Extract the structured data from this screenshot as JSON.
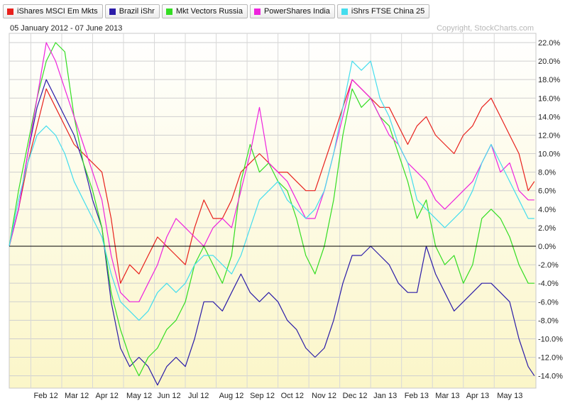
{
  "legend": [
    {
      "label": "iShares MSCI Em Mkts",
      "color": "#e8201c"
    },
    {
      "label": "Brazil iShr",
      "color": "#2b1ca8"
    },
    {
      "label": "Mkt Vectors Russia",
      "color": "#33dd22"
    },
    {
      "label": "PowerShares India",
      "color": "#ee22dd"
    },
    {
      "label": "iShrs FTSE China 25",
      "color": "#44ddee"
    }
  ],
  "header": {
    "date_range": "05 January 2012 - 07 June 2013",
    "copyright": "Copyright, StockCharts.com"
  },
  "chart_data": {
    "type": "line",
    "ylim": [
      -15,
      23.5
    ],
    "grid": true,
    "legend_position": "top-left",
    "y_ticks": [
      "22.0%",
      "20.0%",
      "18.0%",
      "16.0%",
      "14.0%",
      "12.0%",
      "10.0%",
      "8.0%",
      "6.0%",
      "4.0%",
      "2.0%",
      "0.0%",
      "-2.0%",
      "-4.0%",
      "-6.0%",
      "-8.0%",
      "-10.0%",
      "-12.0%",
      "-14.0%"
    ],
    "y_tick_values": [
      22,
      20,
      18,
      16,
      14,
      12,
      10,
      8,
      6,
      4,
      2,
      0,
      -2,
      -4,
      -6,
      -8,
      -10,
      -12,
      -14
    ],
    "x_ticks": [
      "Feb 12",
      "Mar 12",
      "Apr 12",
      "May 12",
      "Jun 12",
      "Jul 12",
      "Aug 12",
      "Sep 12",
      "Oct 12",
      "Nov 12",
      "Dec 12",
      "Jan 13",
      "Feb 13",
      "Mar 13",
      "Apr 13",
      "May 13"
    ],
    "x_tick_values": [
      0.7,
      1.7,
      2.7,
      3.7,
      4.7,
      5.7,
      6.7,
      7.7,
      8.7,
      9.7,
      10.7,
      11.7,
      12.7,
      13.7,
      14.7,
      15.7
    ],
    "x_range": [
      0,
      17.05
    ],
    "series": [
      {
        "name": "iShares MSCI Em Mkts",
        "color": "#e8201c",
        "x": [
          0,
          0.3,
          0.6,
          0.9,
          1.2,
          1.5,
          1.8,
          2.1,
          2.4,
          2.7,
          3.0,
          3.3,
          3.6,
          3.9,
          4.2,
          4.5,
          4.8,
          5.1,
          5.4,
          5.7,
          6.0,
          6.3,
          6.6,
          6.9,
          7.2,
          7.5,
          7.8,
          8.1,
          8.4,
          8.7,
          9.0,
          9.3,
          9.6,
          9.9,
          10.2,
          10.5,
          10.8,
          11.1,
          11.4,
          11.7,
          12.0,
          12.3,
          12.6,
          12.9,
          13.2,
          13.5,
          13.8,
          14.1,
          14.4,
          14.7,
          15.0,
          15.3,
          15.6,
          15.9,
          16.2,
          16.5,
          16.8,
          17.0
        ],
        "y": [
          0,
          4,
          9,
          13,
          17,
          15,
          13,
          11,
          10,
          9,
          8,
          3,
          -4,
          -2,
          -3,
          -1,
          1,
          0,
          -1,
          -2,
          2,
          5,
          3,
          3,
          5,
          8,
          9,
          10,
          9,
          8,
          8,
          7,
          6,
          6,
          9,
          12,
          15,
          18,
          17,
          16,
          15,
          15,
          13,
          11,
          13,
          14,
          12,
          11,
          10,
          12,
          13,
          15,
          16,
          14,
          12,
          10,
          6,
          7
        ]
      },
      {
        "name": "Brazil iShr",
        "color": "#2b1ca8",
        "x": [
          0,
          0.3,
          0.6,
          0.9,
          1.2,
          1.5,
          1.8,
          2.1,
          2.4,
          2.7,
          3.0,
          3.3,
          3.6,
          3.9,
          4.2,
          4.5,
          4.8,
          5.1,
          5.4,
          5.7,
          6.0,
          6.3,
          6.6,
          6.9,
          7.2,
          7.5,
          7.8,
          8.1,
          8.4,
          8.7,
          9.0,
          9.3,
          9.6,
          9.9,
          10.2,
          10.5,
          10.8,
          11.1,
          11.4,
          11.7,
          12.0,
          12.3,
          12.6,
          12.9,
          13.2,
          13.5,
          13.8,
          14.1,
          14.4,
          14.7,
          15.0,
          15.3,
          15.6,
          15.9,
          16.2,
          16.5,
          16.8,
          17.0
        ],
        "y": [
          0,
          4,
          10,
          15,
          18,
          16,
          14,
          12,
          9,
          5,
          2,
          -6,
          -11,
          -13,
          -12,
          -13,
          -15,
          -13,
          -12,
          -13,
          -10,
          -6,
          -6,
          -7,
          -5,
          -3,
          -5,
          -6,
          -5,
          -6,
          -8,
          -9,
          -11,
          -12,
          -11,
          -8,
          -4,
          -1,
          -1,
          0,
          -1,
          -2,
          -4,
          -5,
          -5,
          0,
          -3,
          -5,
          -7,
          -6,
          -5,
          -4,
          -4,
          -5,
          -6,
          -10,
          -13,
          -14
        ]
      },
      {
        "name": "Mkt Vectors Russia",
        "color": "#33dd22",
        "x": [
          0,
          0.3,
          0.6,
          0.9,
          1.2,
          1.5,
          1.8,
          2.1,
          2.4,
          2.7,
          3.0,
          3.3,
          3.6,
          3.9,
          4.2,
          4.5,
          4.8,
          5.1,
          5.4,
          5.7,
          6.0,
          6.3,
          6.6,
          6.9,
          7.2,
          7.5,
          7.8,
          8.1,
          8.4,
          8.7,
          9.0,
          9.3,
          9.6,
          9.9,
          10.2,
          10.5,
          10.8,
          11.1,
          11.4,
          11.7,
          12.0,
          12.3,
          12.6,
          12.9,
          13.2,
          13.5,
          13.8,
          14.1,
          14.4,
          14.7,
          15.0,
          15.3,
          15.6,
          15.9,
          16.2,
          16.5,
          16.8,
          17.0
        ],
        "y": [
          0,
          6,
          11,
          16,
          20,
          22,
          21,
          14,
          9,
          6,
          2,
          -5,
          -9,
          -12,
          -14,
          -12,
          -11,
          -9,
          -8,
          -6,
          -2,
          0,
          -2,
          -4,
          -1,
          7,
          11,
          8,
          9,
          7,
          6,
          3,
          -1,
          -3,
          0,
          5,
          12,
          17,
          15,
          16,
          14,
          13,
          10,
          7,
          3,
          5,
          0,
          -2,
          -1,
          -4,
          -2,
          3,
          4,
          3,
          1,
          -2,
          -4,
          -4
        ]
      },
      {
        "name": "PowerShares India",
        "color": "#ee22dd",
        "x": [
          0,
          0.3,
          0.6,
          0.9,
          1.2,
          1.5,
          1.8,
          2.1,
          2.4,
          2.7,
          3.0,
          3.3,
          3.6,
          3.9,
          4.2,
          4.5,
          4.8,
          5.1,
          5.4,
          5.7,
          6.0,
          6.3,
          6.6,
          6.9,
          7.2,
          7.5,
          7.8,
          8.1,
          8.4,
          8.7,
          9.0,
          9.3,
          9.6,
          9.9,
          10.2,
          10.5,
          10.8,
          11.1,
          11.4,
          11.7,
          12.0,
          12.3,
          12.6,
          12.9,
          13.2,
          13.5,
          13.8,
          14.1,
          14.4,
          14.7,
          15.0,
          15.3,
          15.6,
          15.9,
          16.2,
          16.5,
          16.8,
          17.0
        ],
        "y": [
          0,
          4,
          10,
          16,
          22,
          20,
          17,
          14,
          11,
          8,
          5,
          -1,
          -5,
          -6,
          -6,
          -4,
          -2,
          1,
          3,
          2,
          1,
          0,
          2,
          3,
          2,
          6,
          10,
          15,
          9,
          8,
          7,
          5,
          3,
          3,
          6,
          10,
          14,
          18,
          17,
          16,
          14,
          12,
          11,
          9,
          8,
          7,
          5,
          4,
          5,
          6,
          7,
          9,
          11,
          8,
          9,
          6,
          5,
          5
        ]
      },
      {
        "name": "iShrs FTSE China 25",
        "color": "#44ddee",
        "x": [
          0,
          0.3,
          0.6,
          0.9,
          1.2,
          1.5,
          1.8,
          2.1,
          2.4,
          2.7,
          3.0,
          3.3,
          3.6,
          3.9,
          4.2,
          4.5,
          4.8,
          5.1,
          5.4,
          5.7,
          6.0,
          6.3,
          6.6,
          6.9,
          7.2,
          7.5,
          7.8,
          8.1,
          8.4,
          8.7,
          9.0,
          9.3,
          9.6,
          9.9,
          10.2,
          10.5,
          10.8,
          11.1,
          11.4,
          11.7,
          12.0,
          12.3,
          12.6,
          12.9,
          13.2,
          13.5,
          13.8,
          14.1,
          14.4,
          14.7,
          15.0,
          15.3,
          15.6,
          15.9,
          16.2,
          16.5,
          16.8,
          17.0
        ],
        "y": [
          0,
          5,
          9,
          12,
          13,
          12,
          10,
          7,
          5,
          3,
          1,
          -3,
          -6,
          -7,
          -8,
          -7,
          -5,
          -4,
          -5,
          -4,
          -2,
          -1,
          -1,
          -2,
          -3,
          -1,
          2,
          5,
          6,
          7,
          5,
          4,
          3,
          4,
          6,
          10,
          15,
          20,
          19,
          20,
          16,
          14,
          11,
          9,
          5,
          4,
          3,
          2,
          3,
          4,
          6,
          9,
          11,
          9,
          7,
          5,
          3,
          3
        ]
      }
    ]
  }
}
